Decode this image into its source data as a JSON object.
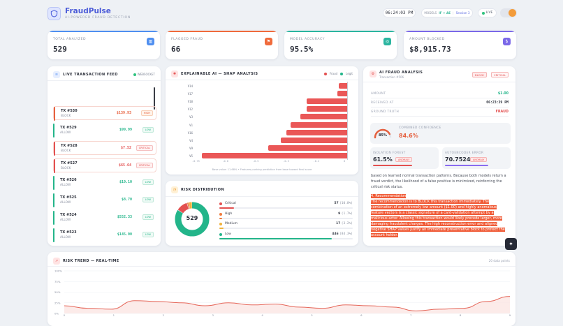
{
  "header": {
    "brand": "FraudPulse",
    "tagline": "AI-POWERED FRAUD DETECTION",
    "clock": "06:24:03 PM",
    "models_label": "MODELS",
    "models_value": "IF + AE",
    "session": "Session 3",
    "live": "LIVE"
  },
  "stats": [
    {
      "label": "TOTAL ANALYZED",
      "value": "529",
      "color": "#4f8ff0",
      "icon": "chart-icon"
    },
    {
      "label": "FLAGGED FRAUD",
      "value": "66",
      "color": "#f06b3c",
      "icon": "flag-icon"
    },
    {
      "label": "MODEL ACCURACY",
      "value": "95.5%",
      "color": "#2bb5a0",
      "icon": "target-icon"
    },
    {
      "label": "AMOUNT BLOCKED",
      "value": "$8,915.73",
      "color": "#7b68e8",
      "icon": "dollar-icon"
    }
  ],
  "feed": {
    "title": "LIVE TRANSACTION FEED",
    "status": "WEBSOCKET",
    "items": [
      {
        "tx": "TX #530",
        "status": "BLOCK",
        "amount": "$139.93",
        "badge": "HIGH",
        "color": "#e7613f"
      },
      {
        "tx": "TX #529",
        "status": "ALLOW",
        "amount": "$99.99",
        "badge": "LOW",
        "color": "#23b58a"
      },
      {
        "tx": "TX #528",
        "status": "BLOCK",
        "amount": "$7.52",
        "badge": "CRITICAL",
        "color": "#e35050"
      },
      {
        "tx": "TX #527",
        "status": "BLOCK",
        "amount": "$65.64",
        "badge": "CRITICAL",
        "color": "#e35050"
      },
      {
        "tx": "TX #526",
        "status": "ALLOW",
        "amount": "$19.10",
        "badge": "LOW",
        "color": "#23b58a"
      },
      {
        "tx": "TX #525",
        "status": "ALLOW",
        "amount": "$8.70",
        "badge": "LOW",
        "color": "#23b58a"
      },
      {
        "tx": "TX #524",
        "status": "ALLOW",
        "amount": "$552.33",
        "badge": "LOW",
        "color": "#23b58a"
      },
      {
        "tx": "TX #523",
        "status": "ALLOW",
        "amount": "$145.00",
        "badge": "LOW",
        "color": "#23b58a"
      }
    ]
  },
  "shap": {
    "title": "EXPLAINABLE AI — SHAP ANALYSIS",
    "legend_fraud": "Fraud",
    "legend_legit": "Legit",
    "caption": "Base value: 11.68% • Features pushing prediction from base toward final score",
    "features": [
      "V14",
      "V17",
      "V10",
      "V12",
      "V3",
      "V1",
      "V16",
      "V4",
      "V9",
      "V5"
    ],
    "values": [
      -0.04,
      -0.05,
      -0.2,
      -0.2,
      -0.23,
      -0.28,
      -0.3,
      -0.33,
      -0.39,
      -0.72
    ],
    "ticks": [
      "-0.75",
      "-0.6",
      "-0.5",
      "-0.3",
      "-0.2",
      "0"
    ],
    "tick_values": [
      -0.75,
      -0.6,
      -0.45,
      -0.3,
      -0.15,
      0
    ]
  },
  "risk": {
    "title": "RISK DISTRIBUTION",
    "total": "529",
    "rows": [
      {
        "name": "Critical",
        "count": "57",
        "pct": "(10.8%)",
        "fraction": 0.108,
        "color": "#e35050"
      },
      {
        "name": "High",
        "count": "9",
        "pct": "(1.7%)",
        "fraction": 0.017,
        "color": "#f07b3c"
      },
      {
        "name": "Medium",
        "count": "17",
        "pct": "(3.2%)",
        "fraction": 0.032,
        "color": "#f0b23c"
      },
      {
        "name": "Low",
        "count": "446",
        "pct": "(84.3%)",
        "fraction": 0.843,
        "color": "#23b58a"
      }
    ]
  },
  "analysis": {
    "title": "AI FRAUD ANALYSIS",
    "subtitle": "Transaction #506",
    "badge1": "BLOCK",
    "badge2": "CRITICAL",
    "amount_label": "AMOUNT",
    "amount": "$1.00",
    "received_label": "RECEIVED AT",
    "received": "06:23:39 PM",
    "truth_label": "GROUND TRUTH",
    "truth": "FRAUD",
    "confidence_gauge": "85%",
    "confidence_fraction": 0.85,
    "confidence_label": "COMBINED CONFIDENCE",
    "confidence_value": "84.6%",
    "iso_label": "ISOLATION FOREST",
    "iso_value": "61.5%",
    "iso_badge": "ANOMALY",
    "ae_label": "AUTOENCODER ERROR",
    "ae_value": "70.7524",
    "ae_badge": "ANOMALY",
    "explain_top": "based on learned normal transaction patterns. Because both models return a fraud verdict, the likelihood of a false positive is minimized, reinforcing the critical risk status.",
    "rec_heading": "4. Recommendation",
    "rec_body": "The recommendation is to BLOCK this transaction immediately. The combination of an extremely low amount ($1.00) and highly anomalous feature vectors is a classic signature of a card-validation attempt by a malicious actor. Allowing this transaction would likely precede larger, more damaging fraudulent charges. The high reconstruction error and aligned negative SHAP values justify an immediate preventative block to protect the account holder."
  },
  "trend": {
    "title": "RISK TREND — REAL-TIME",
    "points_label": "20 data points",
    "y_ticks": [
      "100%",
      "75%",
      "50%",
      "25%",
      "0%"
    ],
    "x_ticks": [
      "0",
      "1",
      "2",
      "3",
      "4",
      "5",
      "6",
      "7",
      "8",
      "9"
    ],
    "series": [
      18,
      12,
      10,
      30,
      28,
      25,
      18,
      25,
      20,
      22,
      15,
      12,
      20,
      18,
      15,
      6,
      10,
      12,
      28,
      40
    ]
  },
  "colors": {
    "accent": "#4b5bd8",
    "danger": "#e35050",
    "success": "#23b58a",
    "warning": "#f07b3c"
  }
}
